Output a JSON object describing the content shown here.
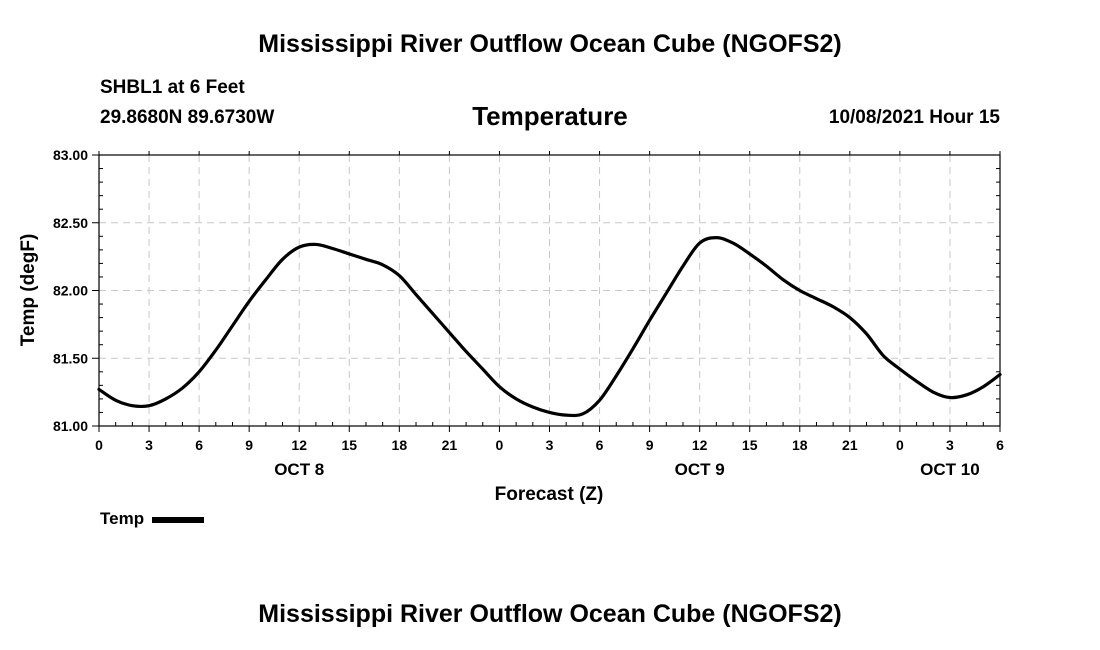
{
  "header": {
    "title_top": "Mississippi River Outflow Ocean Cube (NGOFS2)",
    "station": "SHBL1 at 6 Feet",
    "coordinates": "29.8680N  89.6730W",
    "run_time": "10/08/2021 Hour 15"
  },
  "footer": {
    "title_bottom": "Mississippi River Outflow Ocean Cube (NGOFS2)"
  },
  "chart_data": {
    "type": "line",
    "title": "Temperature",
    "xlabel": "Forecast (Z)",
    "ylabel": "Temp (degF)",
    "ylim": [
      81.0,
      83.0
    ],
    "xlim": [
      0,
      54
    ],
    "y_ticks": [
      "81.00",
      "81.50",
      "82.00",
      "82.50",
      "83.00"
    ],
    "x_ticks": [
      {
        "x": 0,
        "label": "0"
      },
      {
        "x": 3,
        "label": "3"
      },
      {
        "x": 6,
        "label": "6"
      },
      {
        "x": 9,
        "label": "9"
      },
      {
        "x": 12,
        "label": "12"
      },
      {
        "x": 15,
        "label": "15"
      },
      {
        "x": 18,
        "label": "18"
      },
      {
        "x": 21,
        "label": "21"
      },
      {
        "x": 24,
        "label": "0"
      },
      {
        "x": 27,
        "label": "3"
      },
      {
        "x": 30,
        "label": "6"
      },
      {
        "x": 33,
        "label": "9"
      },
      {
        "x": 36,
        "label": "12"
      },
      {
        "x": 39,
        "label": "15"
      },
      {
        "x": 42,
        "label": "18"
      },
      {
        "x": 45,
        "label": "21"
      },
      {
        "x": 48,
        "label": "0"
      },
      {
        "x": 51,
        "label": "3"
      },
      {
        "x": 54,
        "label": "6"
      }
    ],
    "day_labels": [
      {
        "x": 12,
        "label": "OCT 8"
      },
      {
        "x": 36,
        "label": "OCT 9"
      },
      {
        "x": 51,
        "label": "OCT 10"
      }
    ],
    "grid": true,
    "series": [
      {
        "name": "Temp",
        "color": "#000000",
        "x": [
          0,
          1,
          2,
          3,
          4,
          5,
          6,
          7,
          8,
          9,
          10,
          11,
          12,
          13,
          14,
          15,
          16,
          17,
          18,
          19,
          20,
          21,
          22,
          23,
          24,
          25,
          26,
          27,
          28,
          29,
          30,
          31,
          32,
          33,
          34,
          35,
          36,
          37,
          38,
          39,
          40,
          41,
          42,
          43,
          44,
          45,
          46,
          47,
          48,
          49,
          50,
          51,
          52,
          53,
          54
        ],
        "values": [
          81.27,
          81.19,
          81.15,
          81.15,
          81.2,
          81.28,
          81.4,
          81.56,
          81.74,
          81.92,
          82.08,
          82.23,
          82.32,
          82.34,
          82.31,
          82.27,
          82.23,
          82.19,
          82.11,
          81.97,
          81.83,
          81.69,
          81.55,
          81.42,
          81.29,
          81.2,
          81.14,
          81.1,
          81.08,
          81.09,
          81.19,
          81.37,
          81.57,
          81.78,
          81.98,
          82.18,
          82.35,
          82.39,
          82.35,
          82.27,
          82.18,
          82.08,
          82.0,
          81.94,
          81.88,
          81.8,
          81.68,
          81.52,
          81.42,
          81.33,
          81.25,
          81.21,
          81.23,
          81.29,
          81.38
        ]
      }
    ],
    "legend": "bottom-left"
  }
}
